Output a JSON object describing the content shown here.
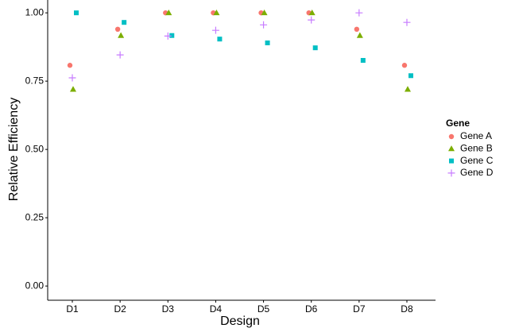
{
  "chart_data": {
    "type": "scatter",
    "x_label": "Design",
    "y_label": "Relative Efficiency",
    "legend_title": "Gene",
    "legend_position": "right",
    "categories": [
      "D1",
      "D2",
      "D3",
      "D4",
      "D5",
      "D6",
      "D7",
      "D8"
    ],
    "ylim": [
      -0.052,
      1.047
    ],
    "yticks": [
      {
        "value": 0,
        "label": "0.00"
      },
      {
        "value": 0.25,
        "label": "0.25"
      },
      {
        "value": 0.5,
        "label": "0.50"
      },
      {
        "value": 0.75,
        "label": "0.75"
      },
      {
        "value": 1,
        "label": "1.00"
      }
    ],
    "series": [
      {
        "name": "Gene A",
        "color": "#F8766D",
        "marker": "circle",
        "values": [
          0.808,
          0.94,
          1.0,
          1.0,
          1.0,
          1.0,
          0.94,
          0.808
        ]
      },
      {
        "name": "Gene B",
        "color": "#7CAE00",
        "marker": "triangle",
        "values": [
          0.72,
          0.917,
          1.0,
          1.0,
          1.0,
          1.0,
          0.917,
          0.72
        ]
      },
      {
        "name": "Gene C",
        "color": "#00BFC4",
        "marker": "square",
        "values": [
          1.0,
          0.965,
          0.917,
          0.904,
          0.89,
          0.872,
          0.826,
          0.77
        ]
      },
      {
        "name": "Gene D",
        "color": "#C77CFF",
        "marker": "plus",
        "values": [
          0.762,
          0.846,
          0.915,
          0.936,
          0.956,
          0.974,
          1.0,
          0.965
        ]
      }
    ]
  }
}
